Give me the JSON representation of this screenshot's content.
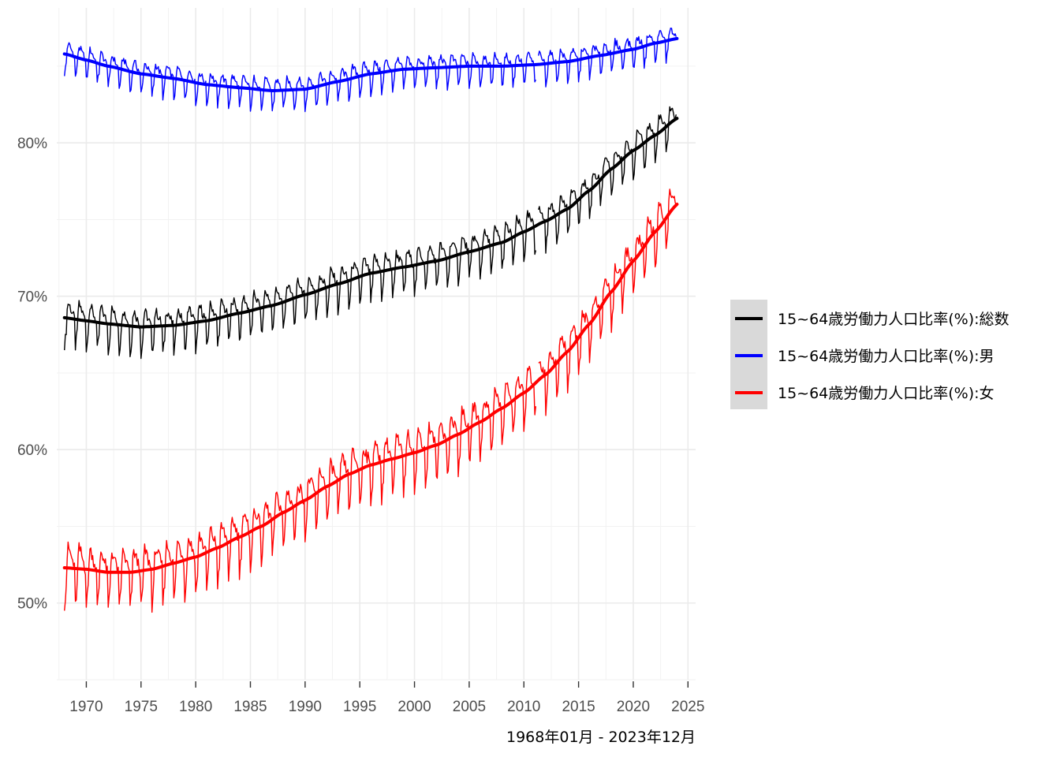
{
  "chart_data": {
    "type": "line",
    "title": "",
    "caption": "1968年01月 - 2023年12月",
    "xlabel": "",
    "ylabel": "",
    "xlim": [
      1967.3,
      2025.7
    ],
    "ylim": [
      45.0,
      88.8
    ],
    "x_ticks": [
      1970,
      1975,
      1980,
      1985,
      1990,
      1995,
      2000,
      2005,
      2010,
      2015,
      2020,
      2025
    ],
    "y_ticks": [
      50,
      60,
      70,
      80
    ],
    "y_tick_labels": [
      "50%",
      "60%",
      "70%",
      "80%"
    ],
    "grid": true,
    "legend_position": "right",
    "series": [
      {
        "name": "15~64歳労働力人口比率(%):総数",
        "color": "#000000",
        "seasonal_amplitude": 1.8,
        "trend": [
          [
            1968.0,
            68.6
          ],
          [
            1970.0,
            68.4
          ],
          [
            1972.0,
            68.2
          ],
          [
            1975.0,
            68.0
          ],
          [
            1978.0,
            68.1
          ],
          [
            1981.0,
            68.4
          ],
          [
            1984.0,
            68.9
          ],
          [
            1987.0,
            69.4
          ],
          [
            1990.0,
            70.1
          ],
          [
            1993.0,
            70.8
          ],
          [
            1996.0,
            71.5
          ],
          [
            1999.0,
            71.9
          ],
          [
            2002.0,
            72.3
          ],
          [
            2005.0,
            72.9
          ],
          [
            2008.0,
            73.5
          ],
          [
            2010.0,
            74.2
          ],
          [
            2012.0,
            74.9
          ],
          [
            2014.0,
            75.7
          ],
          [
            2016.0,
            76.9
          ],
          [
            2018.0,
            78.3
          ],
          [
            2020.0,
            79.5
          ],
          [
            2022.0,
            80.5
          ],
          [
            2024.0,
            81.6
          ]
        ]
      },
      {
        "name": "15~64歳労働力人口比率(%):男",
        "color": "#0000ff",
        "seasonal_amplitude": 1.3,
        "trend": [
          [
            1968.0,
            85.8
          ],
          [
            1970.0,
            85.4
          ],
          [
            1972.0,
            85.0
          ],
          [
            1975.0,
            84.5
          ],
          [
            1978.0,
            84.2
          ],
          [
            1981.0,
            83.8
          ],
          [
            1984.0,
            83.6
          ],
          [
            1987.0,
            83.4
          ],
          [
            1990.0,
            83.5
          ],
          [
            1993.0,
            84.0
          ],
          [
            1996.0,
            84.5
          ],
          [
            1999.0,
            84.8
          ],
          [
            2002.0,
            84.9
          ],
          [
            2005.0,
            85.0
          ],
          [
            2008.0,
            85.0
          ],
          [
            2011.0,
            85.1
          ],
          [
            2014.0,
            85.3
          ],
          [
            2017.0,
            85.7
          ],
          [
            2020.0,
            86.1
          ],
          [
            2022.0,
            86.5
          ],
          [
            2024.0,
            86.8
          ]
        ]
      },
      {
        "name": "15~64歳労働力人口比率(%):女",
        "color": "#ff0000",
        "seasonal_amplitude": 2.4,
        "trend": [
          [
            1968.0,
            52.3
          ],
          [
            1970.0,
            52.2
          ],
          [
            1972.0,
            52.0
          ],
          [
            1974.0,
            52.0
          ],
          [
            1976.0,
            52.2
          ],
          [
            1978.0,
            52.6
          ],
          [
            1980.0,
            53.0
          ],
          [
            1982.0,
            53.6
          ],
          [
            1984.0,
            54.3
          ],
          [
            1986.0,
            55.0
          ],
          [
            1988.0,
            55.9
          ],
          [
            1990.0,
            56.7
          ],
          [
            1992.0,
            57.6
          ],
          [
            1994.0,
            58.4
          ],
          [
            1996.0,
            59.0
          ],
          [
            1998.0,
            59.4
          ],
          [
            2000.0,
            59.8
          ],
          [
            2002.0,
            60.3
          ],
          [
            2004.0,
            61.0
          ],
          [
            2006.0,
            61.8
          ],
          [
            2008.0,
            62.7
          ],
          [
            2010.0,
            63.7
          ],
          [
            2012.0,
            64.9
          ],
          [
            2014.0,
            66.4
          ],
          [
            2016.0,
            68.2
          ],
          [
            2018.0,
            70.3
          ],
          [
            2020.0,
            72.3
          ],
          [
            2022.0,
            74.2
          ],
          [
            2024.0,
            76.0
          ]
        ]
      }
    ]
  }
}
